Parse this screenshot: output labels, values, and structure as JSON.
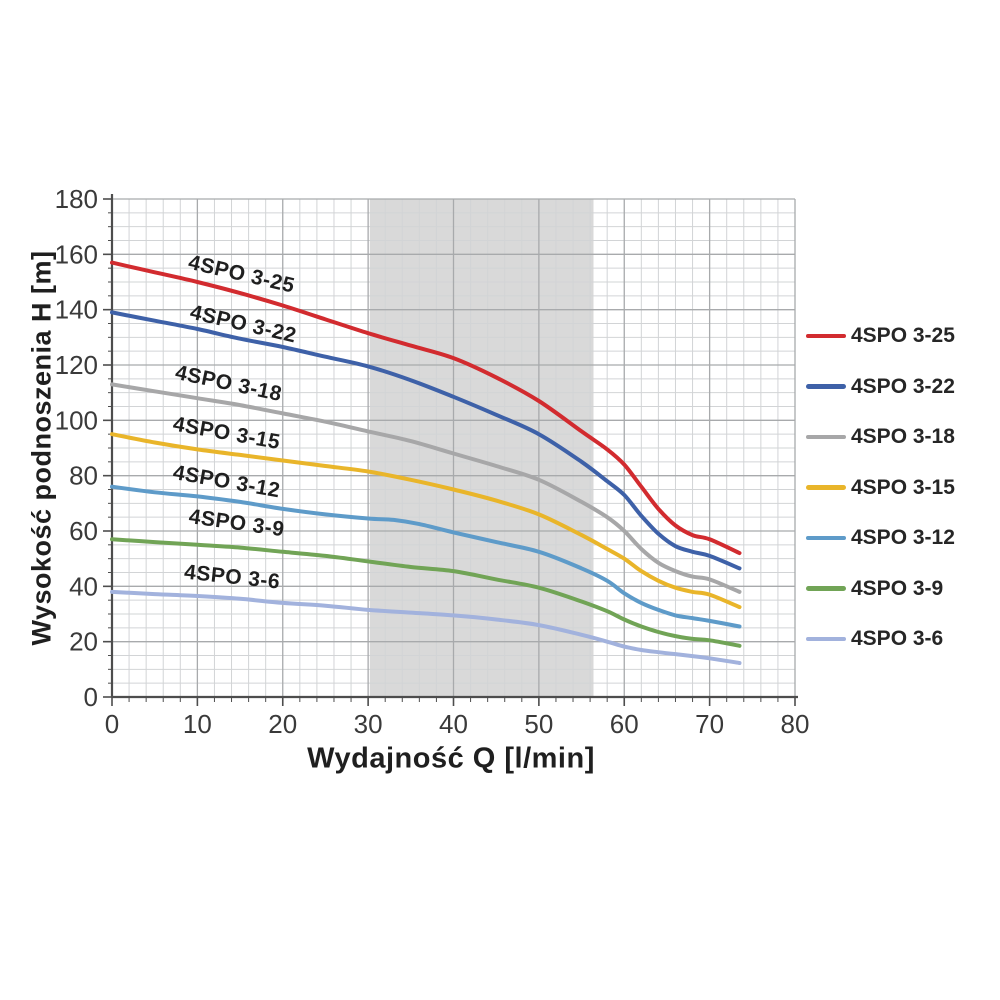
{
  "chart_data": {
    "type": "line",
    "title": "",
    "xlabel": "Wydajność Q [l/min]",
    "ylabel": "Wysokość podnoszenia H [m]",
    "xlim": [
      0,
      80
    ],
    "ylim": [
      0,
      180
    ],
    "x_ticks": [
      0,
      10,
      20,
      30,
      40,
      50,
      60,
      70,
      80
    ],
    "y_ticks": [
      0,
      20,
      40,
      60,
      80,
      100,
      120,
      140,
      160,
      180
    ],
    "x_minor_step": 2,
    "y_minor_step": 5,
    "grid": true,
    "legend_position": "right",
    "highlight_band": {
      "x_start": 30.2,
      "x_end": 56.4,
      "color": "#d9d9d9"
    },
    "series": [
      {
        "name": "4SPO 3-25",
        "color": "#d22b2f",
        "points": [
          [
            0,
            157
          ],
          [
            5,
            153.5
          ],
          [
            10,
            150
          ],
          [
            15,
            146
          ],
          [
            20,
            141.5
          ],
          [
            25,
            136.5
          ],
          [
            30,
            131.5
          ],
          [
            35,
            127
          ],
          [
            40,
            122.5
          ],
          [
            45,
            115.5
          ],
          [
            50,
            107
          ],
          [
            55,
            96
          ],
          [
            58,
            89.5
          ],
          [
            60,
            84
          ],
          [
            62,
            76
          ],
          [
            64,
            68
          ],
          [
            66,
            62
          ],
          [
            68,
            58.5
          ],
          [
            70,
            57
          ],
          [
            73.5,
            52
          ]
        ],
        "label": {
          "q": 15,
          "h": 150.5,
          "tilt_deg": 13
        }
      },
      {
        "name": "4SPO 3-22",
        "color": "#3e61a8",
        "points": [
          [
            0,
            139
          ],
          [
            5,
            136
          ],
          [
            10,
            133
          ],
          [
            15,
            129.5
          ],
          [
            20,
            126.5
          ],
          [
            25,
            123
          ],
          [
            30,
            119.5
          ],
          [
            35,
            114.5
          ],
          [
            40,
            108.5
          ],
          [
            45,
            102
          ],
          [
            50,
            95
          ],
          [
            55,
            85
          ],
          [
            58,
            78
          ],
          [
            60,
            73
          ],
          [
            62,
            65.5
          ],
          [
            64,
            59
          ],
          [
            66,
            54.5
          ],
          [
            68,
            52.5
          ],
          [
            70,
            51
          ],
          [
            73.5,
            46.5
          ]
        ],
        "label": {
          "q": 15.2,
          "h": 132.5,
          "tilt_deg": 13
        }
      },
      {
        "name": "4SPO 3-18",
        "color": "#a7a7a8",
        "points": [
          [
            0,
            113
          ],
          [
            5,
            110.5
          ],
          [
            10,
            108
          ],
          [
            15,
            105.5
          ],
          [
            20,
            102.5
          ],
          [
            25,
            99.5
          ],
          [
            30,
            96
          ],
          [
            35,
            92.5
          ],
          [
            40,
            88
          ],
          [
            45,
            83.5
          ],
          [
            50,
            78.5
          ],
          [
            55,
            70.5
          ],
          [
            58,
            65
          ],
          [
            60,
            60
          ],
          [
            62,
            53.5
          ],
          [
            64,
            48.5
          ],
          [
            66,
            45.5
          ],
          [
            68,
            43.5
          ],
          [
            70,
            42.5
          ],
          [
            73.5,
            38
          ]
        ],
        "label": {
          "q": 13.5,
          "h": 111,
          "tilt_deg": 12
        }
      },
      {
        "name": "4SPO 3-15",
        "color": "#e9b52a",
        "points": [
          [
            0,
            95
          ],
          [
            5,
            92
          ],
          [
            10,
            89.5
          ],
          [
            15,
            87.5
          ],
          [
            20,
            85.5
          ],
          [
            25,
            83.5
          ],
          [
            30,
            81.5
          ],
          [
            35,
            78.5
          ],
          [
            40,
            75
          ],
          [
            45,
            71
          ],
          [
            50,
            66
          ],
          [
            55,
            58.5
          ],
          [
            58,
            53.5
          ],
          [
            60,
            50
          ],
          [
            62,
            45.5
          ],
          [
            64,
            42
          ],
          [
            66,
            39.5
          ],
          [
            68,
            38
          ],
          [
            70,
            37
          ],
          [
            73.5,
            32.5
          ]
        ],
        "label": {
          "q": 13.3,
          "h": 93,
          "tilt_deg": 10
        }
      },
      {
        "name": "4SPO 3-12",
        "color": "#5e9bc9",
        "points": [
          [
            0,
            76
          ],
          [
            5,
            74
          ],
          [
            10,
            72.5
          ],
          [
            15,
            70.5
          ],
          [
            20,
            68
          ],
          [
            25,
            66
          ],
          [
            30,
            64.5
          ],
          [
            33,
            64
          ],
          [
            36,
            62.5
          ],
          [
            40,
            59.5
          ],
          [
            45,
            56
          ],
          [
            50,
            52.5
          ],
          [
            55,
            46.5
          ],
          [
            58,
            42
          ],
          [
            60,
            37.5
          ],
          [
            62,
            34
          ],
          [
            64,
            31.5
          ],
          [
            66,
            29.5
          ],
          [
            68,
            28.5
          ],
          [
            70,
            27.5
          ],
          [
            73.5,
            25.5
          ]
        ],
        "label": {
          "q": 13.3,
          "h": 75.5,
          "tilt_deg": 10
        }
      },
      {
        "name": "4SPO 3-9",
        "color": "#71a456",
        "points": [
          [
            0,
            57
          ],
          [
            5,
            56
          ],
          [
            10,
            55
          ],
          [
            15,
            54
          ],
          [
            20,
            52.5
          ],
          [
            25,
            51
          ],
          [
            30,
            49
          ],
          [
            35,
            47
          ],
          [
            40,
            45.5
          ],
          [
            45,
            42.5
          ],
          [
            50,
            39.5
          ],
          [
            55,
            34.5
          ],
          [
            58,
            31
          ],
          [
            60,
            28
          ],
          [
            62,
            25.5
          ],
          [
            64,
            23.5
          ],
          [
            66,
            22
          ],
          [
            68,
            21
          ],
          [
            70,
            20.5
          ],
          [
            73.5,
            18.5
          ]
        ],
        "label": {
          "q": 14.5,
          "h": 60.5,
          "tilt_deg": 8
        }
      },
      {
        "name": "4SPO 3-6",
        "color": "#a2b2dd",
        "points": [
          [
            0,
            38
          ],
          [
            5,
            37.2
          ],
          [
            10,
            36.5
          ],
          [
            15,
            35.5
          ],
          [
            20,
            34
          ],
          [
            25,
            33
          ],
          [
            30,
            31.5
          ],
          [
            35,
            30.5
          ],
          [
            40,
            29.5
          ],
          [
            45,
            28
          ],
          [
            50,
            26
          ],
          [
            55,
            22.5
          ],
          [
            58,
            20
          ],
          [
            60,
            18.2
          ],
          [
            62,
            17
          ],
          [
            64,
            16.2
          ],
          [
            66,
            15.5
          ],
          [
            68,
            14.8
          ],
          [
            70,
            14
          ],
          [
            73.5,
            12.3
          ]
        ],
        "label": {
          "q": 14,
          "h": 41,
          "tilt_deg": 6
        }
      }
    ],
    "style": {
      "band_color": "#d9d9d9",
      "grid_minor_color": "#d2d4d6",
      "grid_major_color": "#a8aaac",
      "axis_color": "#4d4d4d",
      "tick_label_color": "#3a3a3a",
      "curve_label_color": "#1f1f1f"
    }
  }
}
